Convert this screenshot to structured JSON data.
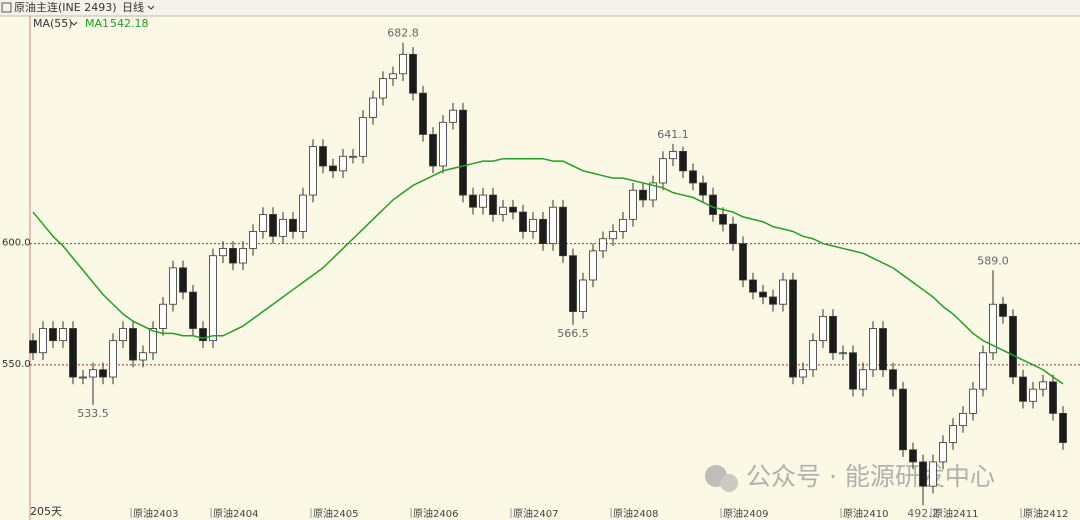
{
  "header": {
    "title": "原油主连(INE 2493)",
    "period": "日线"
  },
  "watermark": "公众号 · 能源研发中心",
  "chart_data": {
    "type": "candlestick",
    "indicator": "MA(55)",
    "day_count": "205天",
    "categories": [
      null,
      null,
      null,
      null,
      null,
      null,
      null,
      null,
      null,
      null,
      "原油2403",
      null,
      null,
      null,
      null,
      null,
      null,
      null,
      "原油2404",
      null,
      null,
      null,
      null,
      null,
      null,
      null,
      null,
      null,
      "原油2405",
      null,
      null,
      null,
      null,
      null,
      null,
      null,
      null,
      null,
      "原油2406",
      null,
      null,
      null,
      null,
      null,
      null,
      null,
      null,
      null,
      "原油2407",
      null,
      null,
      null,
      null,
      null,
      null,
      null,
      null,
      null,
      "原油2408",
      null,
      null,
      null,
      null,
      null,
      null,
      null,
      null,
      null,
      null,
      "原油2409",
      null,
      null,
      null,
      null,
      null,
      null,
      null,
      null,
      null,
      null,
      null,
      "原油2410",
      null,
      null,
      null,
      null,
      null,
      null,
      null,
      null,
      "原油2411",
      null,
      null,
      null,
      null,
      null,
      null,
      null,
      null,
      "原油2412",
      null,
      null,
      null,
      null
    ],
    "open": [
      560,
      555,
      565,
      560,
      565,
      545,
      545,
      548,
      545,
      560,
      565,
      552,
      555,
      565,
      575,
      590,
      580,
      565,
      560,
      595,
      598,
      592,
      598,
      605,
      612,
      603,
      610,
      605,
      620,
      640,
      632,
      630,
      636,
      636,
      652,
      660,
      668,
      670,
      678,
      662,
      645,
      632,
      650,
      655,
      620,
      615,
      620,
      612,
      615,
      613,
      605,
      610,
      600,
      615,
      595,
      572,
      585,
      597,
      602,
      605,
      610,
      622,
      618,
      625,
      635,
      638,
      630,
      625,
      620,
      612,
      608,
      600,
      585,
      580,
      578,
      575,
      585,
      545,
      548,
      560,
      570,
      555,
      555,
      540,
      548,
      565,
      548,
      540,
      515,
      510,
      500,
      510,
      518,
      525,
      530,
      540,
      555,
      575,
      570,
      545,
      535,
      540,
      543,
      530
    ],
    "high": [
      563,
      568,
      568,
      568,
      568,
      548,
      551,
      551,
      563,
      568,
      568,
      558,
      568,
      578,
      593,
      593,
      583,
      568,
      598,
      601,
      601,
      601,
      608,
      615,
      615,
      613,
      613,
      623,
      643,
      643,
      635,
      639,
      639,
      655,
      663,
      671,
      673,
      682.8,
      681,
      665,
      648,
      653,
      658,
      658,
      623,
      623,
      623,
      618,
      618,
      616,
      613,
      613,
      618,
      618,
      598,
      588,
      600,
      605,
      608,
      613,
      625,
      625,
      628,
      638,
      641.1,
      640,
      633,
      628,
      623,
      615,
      611,
      603,
      588,
      583,
      581,
      588,
      588,
      551,
      563,
      573,
      573,
      558,
      558,
      551,
      568,
      568,
      551,
      543,
      518,
      513,
      513,
      521,
      528,
      533,
      543,
      558,
      589.0,
      578,
      573,
      548,
      543,
      546,
      546,
      533
    ],
    "low": [
      552,
      552,
      557,
      557,
      542,
      542,
      533.5,
      542,
      542,
      557,
      549,
      549,
      552,
      562,
      572,
      577,
      562,
      557,
      557,
      592,
      589,
      589,
      595,
      602,
      600,
      600,
      602,
      602,
      617,
      629,
      627,
      627,
      633,
      633,
      649,
      657,
      665,
      667,
      659,
      642,
      629,
      629,
      647,
      617,
      612,
      612,
      609,
      609,
      610,
      602,
      602,
      597,
      597,
      592,
      566.5,
      569,
      582,
      594,
      599,
      602,
      607,
      615,
      615,
      622,
      632,
      627,
      622,
      617,
      609,
      605,
      597,
      582,
      577,
      575,
      572,
      572,
      542,
      542,
      545,
      557,
      552,
      552,
      537,
      537,
      545,
      545,
      537,
      512,
      507,
      492.2,
      497,
      507,
      515,
      522,
      527,
      537,
      552,
      567,
      542,
      532,
      532,
      537,
      527,
      515
    ],
    "close": [
      555,
      565,
      560,
      565,
      545,
      545,
      548,
      545,
      560,
      565,
      552,
      555,
      565,
      575,
      590,
      580,
      565,
      560,
      595,
      598,
      592,
      598,
      605,
      612,
      603,
      610,
      605,
      620,
      640,
      632,
      630,
      636,
      636,
      652,
      660,
      668,
      670,
      678,
      662,
      645,
      632,
      650,
      655,
      620,
      615,
      620,
      612,
      615,
      613,
      605,
      610,
      600,
      615,
      595,
      572,
      585,
      597,
      602,
      605,
      610,
      622,
      618,
      625,
      635,
      638,
      630,
      625,
      620,
      612,
      608,
      600,
      585,
      580,
      578,
      575,
      585,
      545,
      548,
      560,
      570,
      555,
      555,
      540,
      548,
      565,
      548,
      540,
      515,
      510,
      500,
      510,
      518,
      525,
      530,
      540,
      555,
      575,
      570,
      545,
      535,
      540,
      543,
      530,
      518
    ],
    "up_color": "#ffffff",
    "down_color": "#1c1c1c",
    "series": [
      {
        "name": "MA1",
        "color": "#22a022",
        "values": [
          613,
          608,
          603,
          599,
          594,
          589,
          584,
          579,
          575,
          571,
          568,
          566,
          564,
          563,
          563,
          562,
          562,
          561,
          562,
          562,
          564,
          566,
          569,
          572,
          575,
          578,
          581,
          584,
          587,
          590,
          594,
          598,
          602,
          606,
          610,
          614,
          618,
          621,
          624,
          626,
          628,
          630,
          631,
          632,
          633,
          634,
          634,
          635,
          635,
          635,
          635,
          635,
          634,
          634,
          632,
          630,
          629,
          628,
          627,
          627,
          626,
          625,
          624,
          623,
          621,
          620,
          619,
          617,
          615,
          614,
          613,
          611,
          610,
          609,
          607,
          606,
          605,
          603,
          602,
          600,
          599,
          598,
          597,
          596,
          594,
          592,
          590,
          587,
          584,
          581,
          578,
          574,
          571,
          567,
          563,
          560,
          558,
          556,
          554,
          552,
          550,
          548,
          545,
          542.18
        ]
      }
    ],
    "ylim": [
      491,
      693
    ],
    "yticks": [
      {
        "value": 550,
        "label": "550.0"
      },
      {
        "value": 600,
        "label": "600.0"
      }
    ],
    "grid": true,
    "annotations": [
      682.8,
      533.5,
      566.5,
      641.1,
      {
        "value": 589,
        "label": "589.0"
      },
      492.2
    ]
  }
}
